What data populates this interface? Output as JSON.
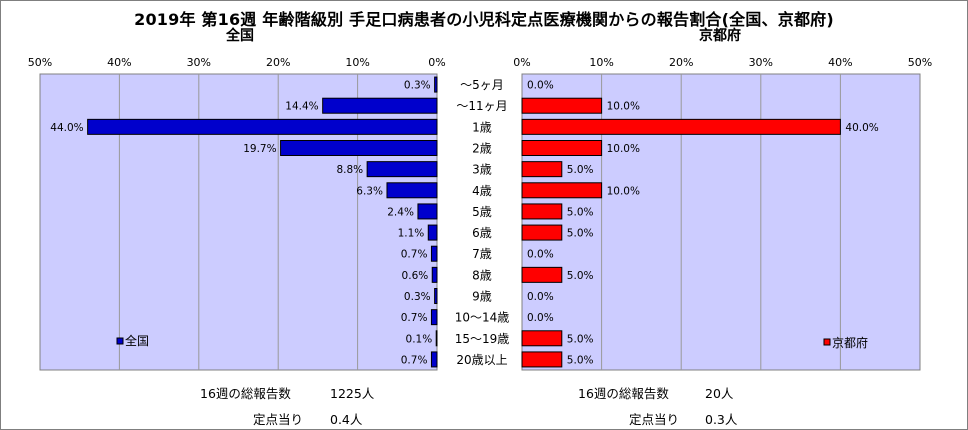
{
  "title": "2019年 第16週 年齢階級別 手足口病患者の小児科定点医療機関からの報告割合(全国、京都府)",
  "chart_data": [
    {
      "type": "bar",
      "orientation": "horizontal",
      "direction": "right-to-left",
      "title": "全国",
      "categories": [
        "〜5ヶ月",
        "〜11ヶ月",
        "1歳",
        "2歳",
        "3歳",
        "4歳",
        "5歳",
        "6歳",
        "7歳",
        "8歳",
        "9歳",
        "10〜14歳",
        "15〜19歳",
        "20歳以上"
      ],
      "series": [
        {
          "name": "全国",
          "color": "#0000cc",
          "values": [
            0.3,
            14.4,
            44.0,
            19.7,
            8.8,
            6.3,
            2.4,
            1.1,
            0.7,
            0.6,
            0.3,
            0.7,
            0.1,
            0.7
          ]
        }
      ],
      "value_labels": [
        "0.3%",
        "14.4%",
        "44.0%",
        "19.7%",
        "8.8%",
        "6.3%",
        "2.4%",
        "1.1%",
        "0.7%",
        "0.6%",
        "0.3%",
        "0.7%",
        "0.1%",
        "0.7%"
      ],
      "xlim": [
        0,
        50
      ],
      "ticks": [
        "50%",
        "40%",
        "30%",
        "20%",
        "10%",
        "0%"
      ],
      "grid": true,
      "plot_background": "#ccccff",
      "legend": {
        "position": "bottom-left",
        "label": "全国"
      }
    },
    {
      "type": "bar",
      "orientation": "horizontal",
      "direction": "left-to-right",
      "title": "京都府",
      "categories": [
        "〜5ヶ月",
        "〜11ヶ月",
        "1歳",
        "2歳",
        "3歳",
        "4歳",
        "5歳",
        "6歳",
        "7歳",
        "8歳",
        "9歳",
        "10〜14歳",
        "15〜19歳",
        "20歳以上"
      ],
      "series": [
        {
          "name": "京都府",
          "color": "#ff0000",
          "values": [
            0.0,
            10.0,
            40.0,
            10.0,
            5.0,
            10.0,
            5.0,
            5.0,
            0.0,
            5.0,
            0.0,
            0.0,
            5.0,
            5.0
          ]
        }
      ],
      "value_labels": [
        "0.0%",
        "10.0%",
        "40.0%",
        "10.0%",
        "5.0%",
        "10.0%",
        "5.0%",
        "5.0%",
        "0.0%",
        "5.0%",
        "0.0%",
        "0.0%",
        "5.0%",
        "5.0%"
      ],
      "xlim": [
        0,
        50
      ],
      "ticks": [
        "0%",
        "10%",
        "20%",
        "30%",
        "40%",
        "50%"
      ],
      "grid": true,
      "plot_background": "#ccccff",
      "legend": {
        "position": "bottom-right",
        "label": "京都府"
      }
    }
  ],
  "footer": {
    "national_total_label": "16週の総報告数",
    "national_total_value": "1225人",
    "national_per_label": "定点当り",
    "national_per_value": "0.4人",
    "kyoto_total_label": "16週の総報告数",
    "kyoto_total_value": "20人",
    "kyoto_per_label": "定点当り",
    "kyoto_per_value": "0.3人"
  }
}
